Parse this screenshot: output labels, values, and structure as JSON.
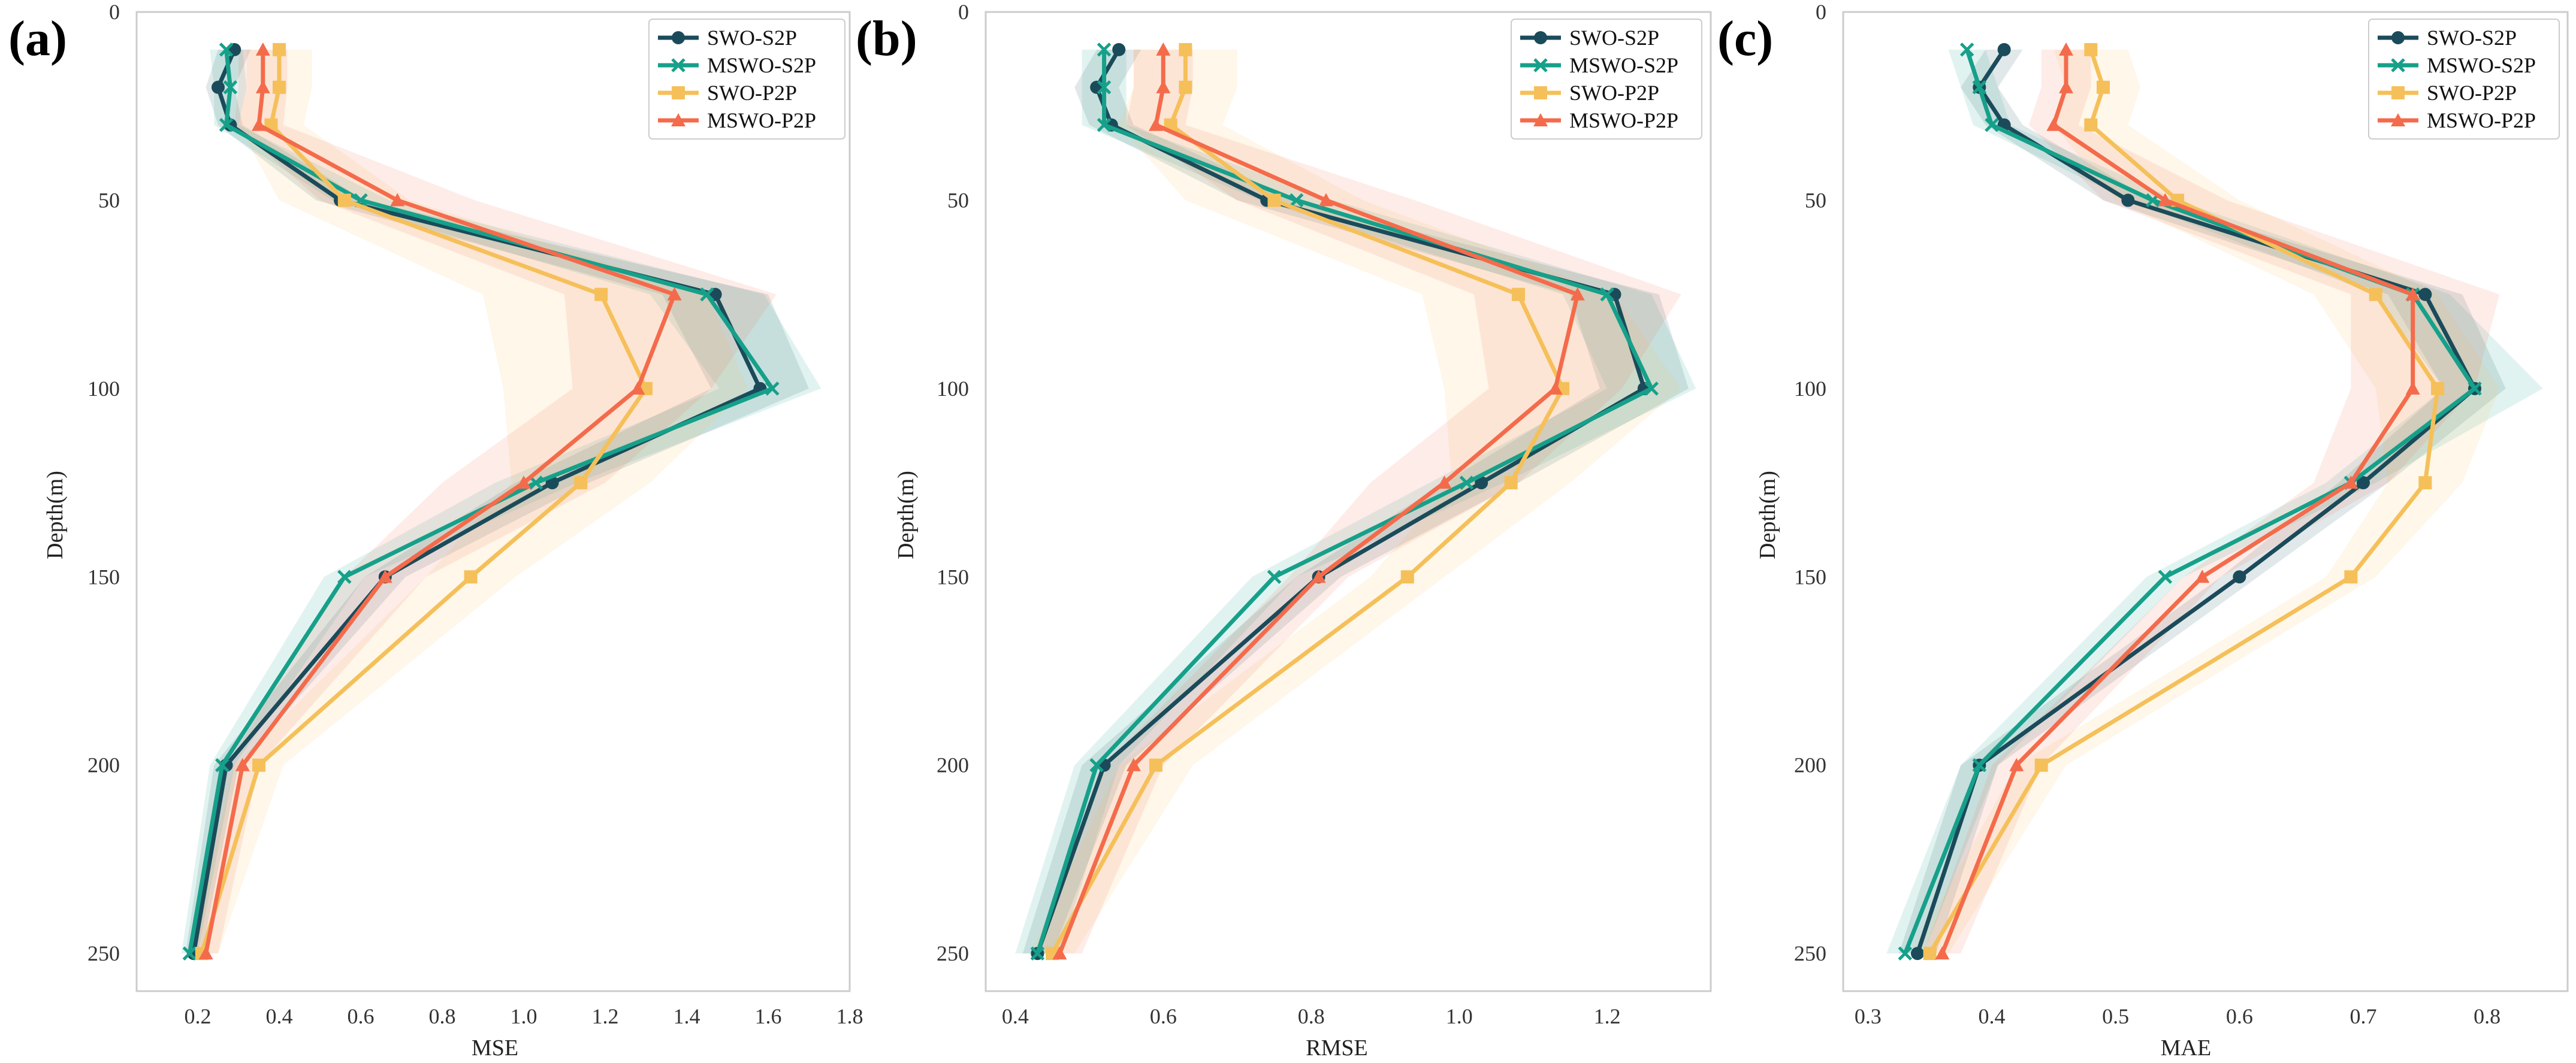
{
  "figure": {
    "colors": {
      "SWO-S2P": "#1b4b5a",
      "MSWO-S2P": "#16a08a",
      "SWO-P2P": "#f5c05a",
      "MSWO-P2P": "#f46b4b"
    },
    "series_styles": [
      {
        "name": "SWO-S2P",
        "marker": "circle"
      },
      {
        "name": "MSWO-S2P",
        "marker": "x"
      },
      {
        "name": "SWO-P2P",
        "marker": "square"
      },
      {
        "name": "MSWO-P2P",
        "marker": "triangle"
      }
    ]
  },
  "chart_data": [
    {
      "type": "line",
      "panel_label": "(a)",
      "title": "",
      "xlabel": "MSE",
      "ylabel": "Depth(m)",
      "xlim": [
        0.05,
        1.8
      ],
      "ylim": [
        0,
        260
      ],
      "y_inverted": true,
      "grid": false,
      "legend_position": "top-right",
      "xticks": [
        0.2,
        0.4,
        0.6,
        0.8,
        1.0,
        1.2,
        1.4,
        1.6,
        1.8
      ],
      "xtick_labels": [
        "0.2",
        "0.4",
        "0.6",
        "0.8",
        "1.0",
        "1.2",
        "1.4",
        "1.6",
        "1.8"
      ],
      "yticks": [
        0,
        50,
        100,
        150,
        200,
        250
      ],
      "ytick_labels": [
        "0",
        "50",
        "100",
        "150",
        "200",
        "250"
      ],
      "depth": [
        10,
        20,
        30,
        50,
        75,
        100,
        125,
        150,
        200,
        250
      ],
      "series": [
        {
          "name": "SWO-S2P",
          "values": [
            0.29,
            0.25,
            0.28,
            0.55,
            1.47,
            1.58,
            1.07,
            0.66,
            0.27,
            0.19
          ],
          "lower": [
            0.25,
            0.22,
            0.25,
            0.49,
            1.34,
            1.46,
            0.98,
            0.61,
            0.24,
            0.17
          ],
          "upper": [
            0.33,
            0.29,
            0.31,
            0.61,
            1.6,
            1.7,
            1.16,
            0.71,
            0.3,
            0.21
          ]
        },
        {
          "name": "MSWO-S2P",
          "values": [
            0.27,
            0.28,
            0.27,
            0.6,
            1.45,
            1.61,
            1.03,
            0.56,
            0.26,
            0.18
          ],
          "lower": [
            0.23,
            0.24,
            0.24,
            0.53,
            1.31,
            1.48,
            0.93,
            0.51,
            0.23,
            0.16
          ],
          "upper": [
            0.31,
            0.32,
            0.3,
            0.67,
            1.59,
            1.73,
            1.13,
            0.61,
            0.29,
            0.2
          ]
        },
        {
          "name": "SWO-P2P",
          "values": [
            0.4,
            0.4,
            0.38,
            0.56,
            1.19,
            1.3,
            1.14,
            0.87,
            0.35,
            0.21
          ],
          "lower": [
            0.32,
            0.32,
            0.3,
            0.4,
            0.9,
            0.95,
            0.97,
            0.76,
            0.29,
            0.18
          ],
          "upper": [
            0.48,
            0.48,
            0.46,
            0.72,
            1.45,
            1.55,
            1.31,
            0.98,
            0.41,
            0.25
          ]
        },
        {
          "name": "MSWO-P2P",
          "values": [
            0.36,
            0.36,
            0.35,
            0.69,
            1.37,
            1.28,
            1.0,
            0.66,
            0.31,
            0.22
          ],
          "lower": [
            0.3,
            0.3,
            0.29,
            0.5,
            1.1,
            1.12,
            0.8,
            0.56,
            0.27,
            0.19
          ],
          "upper": [
            0.42,
            0.42,
            0.41,
            0.88,
            1.62,
            1.46,
            1.2,
            0.76,
            0.35,
            0.25
          ]
        }
      ]
    },
    {
      "type": "line",
      "panel_label": "(b)",
      "title": "",
      "xlabel": "RMSE",
      "ylabel": "Depth(m)",
      "xlim": [
        0.36,
        1.34
      ],
      "ylim": [
        0,
        260
      ],
      "y_inverted": true,
      "grid": false,
      "legend_position": "top-right",
      "xticks": [
        0.4,
        0.6,
        0.8,
        1.0,
        1.2
      ],
      "xtick_labels": [
        "0.4",
        "0.6",
        "0.8",
        "1.0",
        "1.2"
      ],
      "yticks": [
        0,
        50,
        100,
        150,
        200,
        250
      ],
      "ytick_labels": [
        "0",
        "50",
        "100",
        "150",
        "200",
        "250"
      ],
      "depth": [
        10,
        20,
        30,
        50,
        75,
        100,
        125,
        150,
        200,
        250
      ],
      "series": [
        {
          "name": "SWO-S2P",
          "values": [
            0.54,
            0.51,
            0.53,
            0.74,
            1.21,
            1.25,
            1.03,
            0.81,
            0.52,
            0.43
          ],
          "lower": [
            0.51,
            0.48,
            0.5,
            0.7,
            1.15,
            1.19,
            0.98,
            0.78,
            0.49,
            0.41
          ],
          "upper": [
            0.57,
            0.54,
            0.56,
            0.78,
            1.27,
            1.31,
            1.08,
            0.84,
            0.55,
            0.45
          ]
        },
        {
          "name": "MSWO-S2P",
          "values": [
            0.52,
            0.52,
            0.52,
            0.78,
            1.2,
            1.26,
            1.01,
            0.75,
            0.51,
            0.43
          ],
          "lower": [
            0.49,
            0.49,
            0.49,
            0.73,
            1.14,
            1.2,
            0.96,
            0.72,
            0.48,
            0.4
          ],
          "upper": [
            0.55,
            0.55,
            0.55,
            0.83,
            1.26,
            1.32,
            1.06,
            0.78,
            0.54,
            0.46
          ]
        },
        {
          "name": "SWO-P2P",
          "values": [
            0.63,
            0.63,
            0.61,
            0.75,
            1.08,
            1.14,
            1.07,
            0.93,
            0.59,
            0.45
          ],
          "lower": [
            0.56,
            0.56,
            0.54,
            0.63,
            0.95,
            0.98,
            0.99,
            0.88,
            0.54,
            0.42
          ],
          "upper": [
            0.7,
            0.7,
            0.68,
            0.87,
            1.21,
            1.3,
            1.15,
            0.98,
            0.64,
            0.48
          ]
        },
        {
          "name": "MSWO-P2P",
          "values": [
            0.6,
            0.6,
            0.59,
            0.82,
            1.16,
            1.13,
            0.98,
            0.81,
            0.56,
            0.46
          ],
          "lower": [
            0.56,
            0.56,
            0.55,
            0.7,
            1.02,
            1.04,
            0.88,
            0.77,
            0.52,
            0.43
          ],
          "upper": [
            0.64,
            0.64,
            0.63,
            0.94,
            1.3,
            1.22,
            1.08,
            0.85,
            0.6,
            0.49
          ]
        }
      ]
    },
    {
      "type": "line",
      "panel_label": "(c)",
      "title": "",
      "xlabel": "MAE",
      "ylabel": "Depth(m)",
      "xlim": [
        0.28,
        0.865
      ],
      "ylim": [
        0,
        260
      ],
      "y_inverted": true,
      "grid": false,
      "legend_position": "top-right",
      "xticks": [
        0.3,
        0.4,
        0.5,
        0.6,
        0.7,
        0.8
      ],
      "xtick_labels": [
        "0.3",
        "0.4",
        "0.5",
        "0.6",
        "0.7",
        "0.8"
      ],
      "yticks": [
        0,
        50,
        100,
        150,
        200,
        250
      ],
      "ytick_labels": [
        "0",
        "50",
        "100",
        "150",
        "200",
        "250"
      ],
      "depth": [
        10,
        20,
        30,
        50,
        75,
        100,
        125,
        150,
        200,
        250
      ],
      "series": [
        {
          "name": "SWO-S2P",
          "values": [
            0.41,
            0.39,
            0.41,
            0.51,
            0.75,
            0.79,
            0.7,
            0.6,
            0.39,
            0.34
          ],
          "lower": [
            0.395,
            0.375,
            0.395,
            0.49,
            0.72,
            0.765,
            0.68,
            0.585,
            0.375,
            0.325
          ],
          "upper": [
            0.425,
            0.405,
            0.425,
            0.53,
            0.78,
            0.815,
            0.72,
            0.615,
            0.405,
            0.355
          ]
        },
        {
          "name": "MSWO-S2P",
          "values": [
            0.38,
            0.39,
            0.4,
            0.53,
            0.74,
            0.79,
            0.69,
            0.54,
            0.39,
            0.33
          ],
          "lower": [
            0.365,
            0.375,
            0.385,
            0.51,
            0.71,
            0.765,
            0.67,
            0.525,
            0.375,
            0.315
          ],
          "upper": [
            0.395,
            0.405,
            0.415,
            0.55,
            0.77,
            0.845,
            0.71,
            0.555,
            0.405,
            0.345
          ]
        },
        {
          "name": "SWO-P2P",
          "values": [
            0.48,
            0.49,
            0.48,
            0.55,
            0.71,
            0.76,
            0.75,
            0.69,
            0.44,
            0.35
          ],
          "lower": [
            0.45,
            0.46,
            0.45,
            0.5,
            0.66,
            0.71,
            0.72,
            0.67,
            0.42,
            0.335
          ],
          "upper": [
            0.51,
            0.52,
            0.51,
            0.6,
            0.76,
            0.81,
            0.78,
            0.71,
            0.46,
            0.365
          ]
        },
        {
          "name": "MSWO-P2P",
          "values": [
            0.46,
            0.46,
            0.45,
            0.54,
            0.74,
            0.74,
            0.69,
            0.57,
            0.42,
            0.36
          ],
          "lower": [
            0.44,
            0.44,
            0.43,
            0.49,
            0.69,
            0.69,
            0.66,
            0.555,
            0.4,
            0.345
          ],
          "upper": [
            0.48,
            0.48,
            0.47,
            0.59,
            0.81,
            0.79,
            0.72,
            0.585,
            0.44,
            0.375
          ]
        }
      ]
    }
  ]
}
